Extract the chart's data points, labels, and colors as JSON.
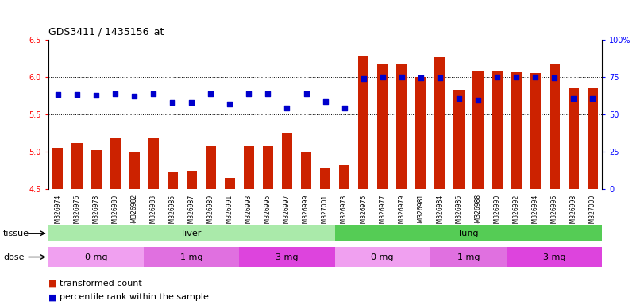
{
  "title": "GDS3411 / 1435156_at",
  "samples": [
    "GSM326974",
    "GSM326976",
    "GSM326978",
    "GSM326980",
    "GSM326982",
    "GSM326983",
    "GSM326985",
    "GSM326987",
    "GSM326989",
    "GSM326991",
    "GSM326993",
    "GSM326995",
    "GSM326997",
    "GSM326999",
    "GSM327001",
    "GSM326973",
    "GSM326975",
    "GSM326977",
    "GSM326979",
    "GSM326981",
    "GSM326984",
    "GSM326986",
    "GSM326988",
    "GSM326990",
    "GSM326992",
    "GSM326994",
    "GSM326996",
    "GSM326998",
    "GSM327000"
  ],
  "bar_values": [
    5.05,
    5.12,
    5.02,
    5.18,
    5.0,
    5.18,
    4.72,
    4.75,
    5.08,
    4.65,
    5.08,
    5.08,
    5.25,
    5.0,
    4.78,
    4.82,
    6.28,
    6.18,
    6.18,
    6.0,
    6.27,
    5.83,
    6.07,
    6.08,
    6.06,
    6.05,
    6.18,
    5.85,
    5.85
  ],
  "dot_values": [
    63.5,
    63.5,
    63.0,
    64.0,
    62.0,
    64.0,
    58.0,
    58.0,
    64.0,
    57.0,
    64.0,
    64.0,
    54.0,
    64.0,
    58.5,
    54.0,
    74.0,
    75.0,
    75.0,
    74.5,
    74.5,
    60.5,
    59.5,
    75.0,
    75.0,
    75.0,
    74.5,
    60.5,
    60.5
  ],
  "ylim_left": [
    4.5,
    6.5
  ],
  "yticks_left": [
    4.5,
    5.0,
    5.5,
    6.0,
    6.5
  ],
  "ylim_right": [
    0,
    100
  ],
  "yticks_right": [
    0,
    25,
    50,
    75,
    100
  ],
  "tissue_groups": [
    {
      "label": "liver",
      "start": 0,
      "end": 15,
      "color": "#aaeaaa"
    },
    {
      "label": "lung",
      "start": 15,
      "end": 29,
      "color": "#55cc55"
    }
  ],
  "dose_groups": [
    {
      "label": "0 mg",
      "start": 0,
      "end": 5,
      "color": "#f0a0f0"
    },
    {
      "label": "1 mg",
      "start": 5,
      "end": 10,
      "color": "#e070e0"
    },
    {
      "label": "3 mg",
      "start": 10,
      "end": 15,
      "color": "#dd44dd"
    },
    {
      "label": "0 mg",
      "start": 15,
      "end": 20,
      "color": "#f0a0f0"
    },
    {
      "label": "1 mg",
      "start": 20,
      "end": 24,
      "color": "#e070e0"
    },
    {
      "label": "3 mg",
      "start": 24,
      "end": 29,
      "color": "#dd44dd"
    }
  ],
  "bar_color": "#cc2200",
  "dot_color": "#0000cc",
  "bg_color": "#ffffff",
  "label_tissue": "tissue",
  "label_dose": "dose",
  "legend_bar": "transformed count",
  "legend_dot": "percentile rank within the sample"
}
